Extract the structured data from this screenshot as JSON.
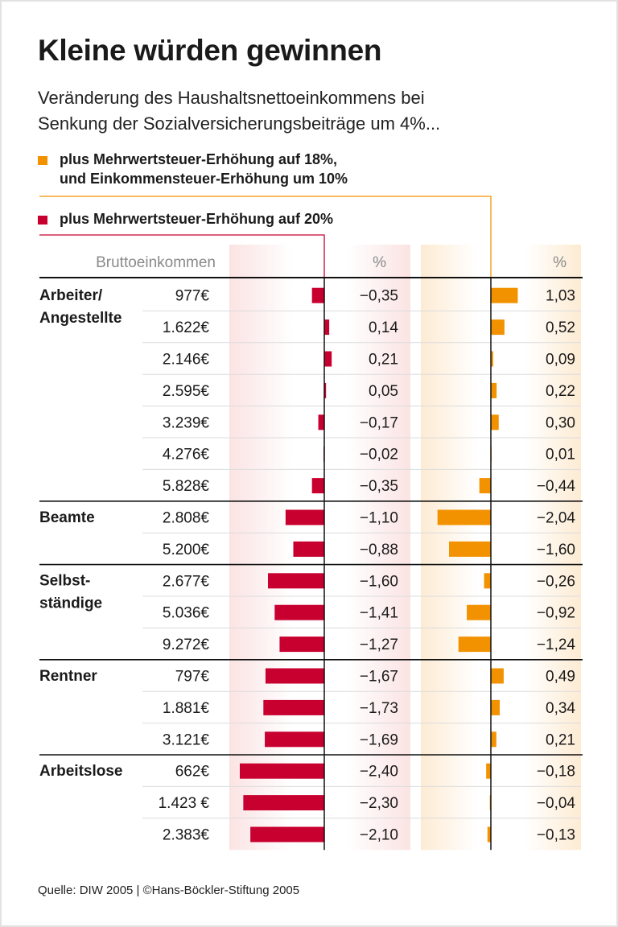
{
  "title": "Kleine würden gewinnen",
  "subtitle": [
    "Veränderung des Haushaltsnettoeinkommens bei",
    "Senkung der Sozialversicherungsbeiträge um 4%..."
  ],
  "source": "Quelle: DIW 2005 | ©Hans-Böckler-Stiftung 2005",
  "chart_data": {
    "type": "bar",
    "orientation": "horizontal",
    "column_header_income": "Bruttoeinkommen",
    "unit_label": "%",
    "series": [
      {
        "name": "plus Mehrwertsteuer-Erhöhung auf 20%",
        "color": "#c8002f",
        "values": [
          -0.35,
          0.14,
          0.21,
          0.05,
          -0.17,
          -0.02,
          -0.35,
          -1.1,
          -0.88,
          -1.6,
          -1.41,
          -1.27,
          -1.67,
          -1.73,
          -1.69,
          -2.4,
          -2.3,
          -2.1
        ],
        "labels": [
          "−0,35",
          "0,14",
          "0,21",
          "0,05",
          "−0,17",
          "−0,02",
          "−0,35",
          "−1,10",
          "−0,88",
          "−1,60",
          "−1,41",
          "−1,27",
          "−1,67",
          "−1,73",
          "−1,69",
          "−2,40",
          "−2,30",
          "−2,10"
        ]
      },
      {
        "name": "plus Mehrwertsteuer-Erhöhung auf 18%, und Einkommensteuer-Erhöhung um 10%",
        "name_lines": [
          "plus Mehrwertsteuer-Erhöhung auf 18%,",
          "und Einkommensteuer-Erhöhung um 10%"
        ],
        "color": "#f39200",
        "values": [
          1.03,
          0.52,
          0.09,
          0.22,
          0.3,
          0.01,
          -0.44,
          -2.04,
          -1.6,
          -0.26,
          -0.92,
          -1.24,
          0.49,
          0.34,
          0.21,
          -0.18,
          -0.04,
          -0.13
        ],
        "labels": [
          "1,03",
          "0,52",
          "0,09",
          "0,22",
          "0,30",
          "0,01",
          "−0,44",
          "−2,04",
          "−1,60",
          "−0,26",
          "−0,92",
          "−1,24",
          "0,49",
          "0,34",
          "0,21",
          "−0,18",
          "−0,04",
          "−0,13"
        ]
      }
    ],
    "groups": [
      {
        "label": [
          "Arbeiter/",
          "Angestellte"
        ],
        "incomes": [
          "977€",
          "1.622€",
          "2.146€",
          "2.595€",
          "3.239€",
          "4.276€",
          "5.828€"
        ]
      },
      {
        "label": [
          "Beamte"
        ],
        "incomes": [
          "2.808€",
          "5.200€"
        ]
      },
      {
        "label": [
          "Selbst-",
          "ständige"
        ],
        "incomes": [
          "2.677€",
          "5.036€",
          "9.272€"
        ]
      },
      {
        "label": [
          "Rentner"
        ],
        "incomes": [
          "797€",
          "1.881€",
          "3.121€"
        ]
      },
      {
        "label": [
          "Arbeitslose"
        ],
        "incomes": [
          "662€",
          "1.423 €",
          "2.383€"
        ]
      }
    ]
  }
}
